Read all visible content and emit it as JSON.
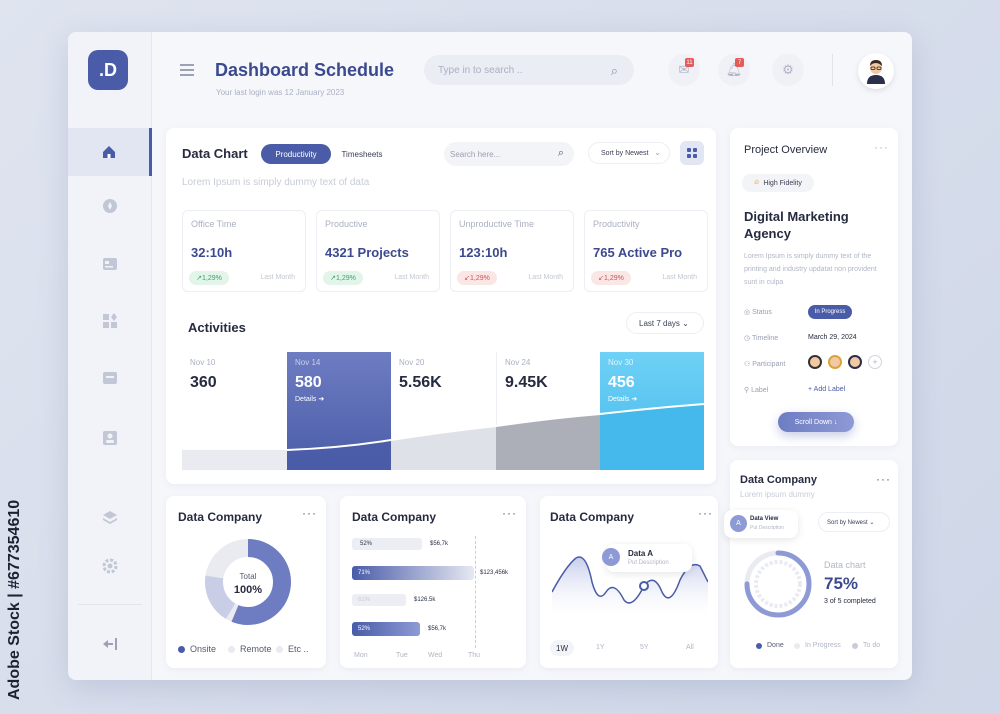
{
  "sidebar_logo": ".D",
  "header": {
    "title": "Dashboard Schedule",
    "last_login": "Your last login was 12 January 2023",
    "search_placeholder": "Type in to search ..",
    "mail_count": "11",
    "notif_count": "7"
  },
  "data_chart": {
    "title": "Data Chart",
    "tabs": [
      "Productivity",
      "Timesheets"
    ],
    "search_placeholder": "Search here...",
    "sort_label": "Sort by Newest",
    "subtitle": "Lorem Ipsum is simply dummy text of data",
    "stats": [
      {
        "label": "Office Time",
        "value": "32:10h",
        "change": "1,29%",
        "trend": "up",
        "period": "Last Month"
      },
      {
        "label": "Productive",
        "value": "4321 Projects",
        "change": "1,29%",
        "trend": "up",
        "period": "Last Month"
      },
      {
        "label": "Unproductive Time",
        "value": "123:10h",
        "change": "1,29%",
        "trend": "down",
        "period": "Last Month"
      },
      {
        "label": "Productivity",
        "value": "765 Active Pro",
        "change": "1,29%",
        "trend": "down",
        "period": "Last Month"
      }
    ],
    "activities_title": "Activities",
    "range_label": "Last 7 days",
    "activities": [
      {
        "date": "Nov 10",
        "value": "360",
        "details": ""
      },
      {
        "date": "Nov 14",
        "value": "580",
        "details": "Details"
      },
      {
        "date": "Nov 20",
        "value": "5.56K",
        "details": ""
      },
      {
        "date": "Nov 24",
        "value": "9.45K",
        "details": ""
      },
      {
        "date": "Nov 30",
        "value": "456",
        "details": "Details"
      }
    ]
  },
  "project": {
    "title": "Project Overview",
    "tag": "High Fidelity",
    "name": "Digital Marketing Agency",
    "desc": "Lorem Ipsum is simply dummy text of the printing and industry updatat non provident sunt in culpa",
    "status_label": "Status",
    "status_value": "In Progress",
    "timeline_label": "Timeline",
    "timeline_value": "March 29, 2024",
    "participant_label": "Participant",
    "label_label": "Label",
    "add_label": "+ Add Label",
    "scroll_btn": "Scroll Down"
  },
  "donut_card": {
    "title": "Data Company",
    "center_label": "Total",
    "center_value": "100%",
    "legend": [
      "Onsite",
      "Remote",
      "Etc .."
    ]
  },
  "bar_card": {
    "title": "Data Company",
    "bars": [
      {
        "pct": "52%",
        "value": "$56,7k"
      },
      {
        "pct": "71%",
        "value": "$123,456k"
      },
      {
        "pct": "61%",
        "value": "$126.5k"
      },
      {
        "pct": "52%",
        "value": "$56,7k"
      }
    ],
    "days": [
      "Mon",
      "Tue",
      "Wed",
      "Thu"
    ]
  },
  "line_card": {
    "title": "Data Company",
    "tip_title": "Data A",
    "tip_sub": "Put Description",
    "ranges": [
      "1W",
      "1Y",
      "5Y",
      "All"
    ]
  },
  "progress_card": {
    "title": "Data Company",
    "subtitle": "Lorem ipsum dummy",
    "view_title": "Data View",
    "view_sub": "Put Description",
    "sort_label": "Sort by Newest",
    "chart_label": "Data chart",
    "percent": "75%",
    "completed": "3 of 5 completed",
    "legend": [
      "Done",
      "In Progress",
      "To do"
    ]
  },
  "colors": {
    "accent": "#4a5ca8",
    "cyan": "#45b9ec"
  },
  "watermark": "Adobe Stock | #677354610"
}
